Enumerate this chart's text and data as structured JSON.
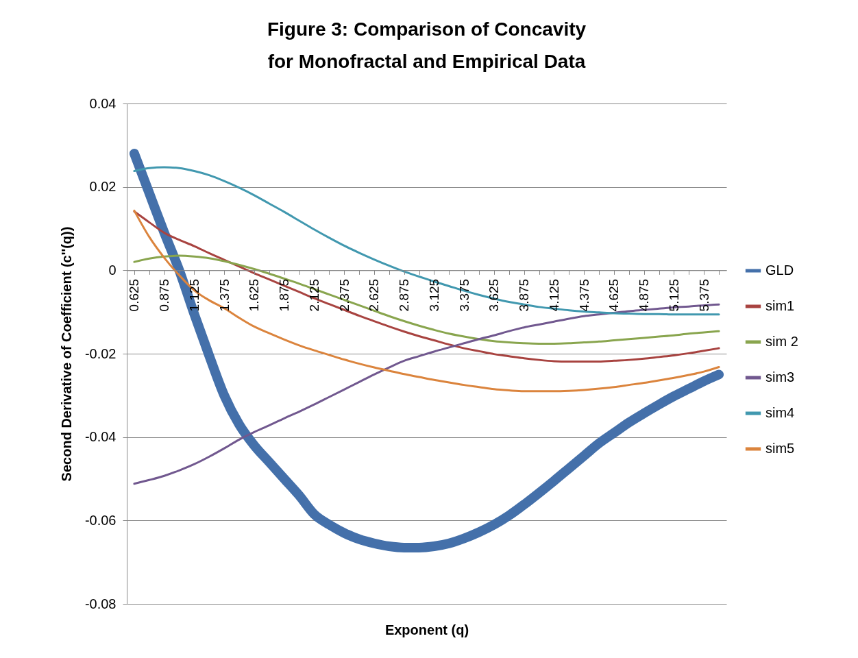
{
  "chart_data": {
    "type": "line",
    "title": "Figure 3: Comparison of Concavity\nfor Monofractal and Empirical Data",
    "xlabel": "Exponent (q)",
    "ylabel": "Second Derivative of Coefficient (c''(q))",
    "categories": [
      "0.625",
      null,
      "0.875",
      null,
      "1.125",
      null,
      "1.375",
      null,
      "1.625",
      null,
      "1.875",
      null,
      "2.125",
      null,
      "2.375",
      null,
      "2.625",
      null,
      "2.875",
      null,
      "3.125",
      null,
      "3.375",
      null,
      "3.625",
      null,
      "3.875",
      null,
      "4.125",
      null,
      "4.375",
      null,
      "4.625",
      null,
      "4.875",
      null,
      "5.125",
      null,
      "5.375",
      null
    ],
    "ylim": [
      -0.08,
      0.04
    ],
    "yticks": [
      -0.08,
      -0.06,
      -0.04,
      -0.02,
      0,
      0.02,
      0.04
    ],
    "grid": "y",
    "legend": "right",
    "series": [
      {
        "name": "GLD",
        "color": "#4470aa",
        "values": [
          0.028,
          0.0185,
          0.009,
          0.0,
          -0.0105,
          -0.0205,
          -0.03,
          -0.037,
          -0.042,
          -0.046,
          -0.05,
          -0.054,
          -0.0585,
          -0.061,
          -0.063,
          -0.0645,
          -0.0655,
          -0.0662,
          -0.0665,
          -0.0665,
          -0.0662,
          -0.0655,
          -0.0643,
          -0.0628,
          -0.061,
          -0.0588,
          -0.0562,
          -0.0534,
          -0.0505,
          -0.0475,
          -0.0445,
          -0.0415,
          -0.039,
          -0.0365,
          -0.0343,
          -0.0322,
          -0.0302,
          -0.0284,
          -0.0266,
          -0.025
        ]
      },
      {
        "name": "sim1",
        "color": "#a84340",
        "values": [
          0.0141,
          0.0115,
          0.009,
          0.0073,
          0.0058,
          0.0041,
          0.0025,
          0.0009,
          -0.0007,
          -0.0022,
          -0.0037,
          -0.0052,
          -0.0067,
          -0.0081,
          -0.0095,
          -0.0109,
          -0.0122,
          -0.0135,
          -0.0147,
          -0.0158,
          -0.0168,
          -0.0178,
          -0.0187,
          -0.0194,
          -0.0201,
          -0.0206,
          -0.0211,
          -0.0215,
          -0.0218,
          -0.0219,
          -0.0219,
          -0.0219,
          -0.0217,
          -0.0215,
          -0.0212,
          -0.0208,
          -0.0204,
          -0.0199,
          -0.0193,
          -0.0187
        ]
      },
      {
        "name": "sim 2",
        "color": "#89a54e",
        "values": [
          0.002,
          0.0028,
          0.0033,
          0.0035,
          0.0033,
          0.0029,
          0.0022,
          0.0013,
          0.0003,
          -0.0008,
          -0.002,
          -0.0032,
          -0.0045,
          -0.0058,
          -0.0071,
          -0.0084,
          -0.0097,
          -0.011,
          -0.0122,
          -0.0133,
          -0.0143,
          -0.0152,
          -0.0159,
          -0.0165,
          -0.017,
          -0.0173,
          -0.0175,
          -0.0176,
          -0.0176,
          -0.0175,
          -0.0173,
          -0.0171,
          -0.0168,
          -0.0165,
          -0.0162,
          -0.0159,
          -0.0156,
          -0.0152,
          -0.0149,
          -0.0146
        ]
      },
      {
        "name": "sim3",
        "color": "#71588f",
        "values": [
          -0.0512,
          -0.0503,
          -0.0493,
          -0.048,
          -0.0465,
          -0.0447,
          -0.0427,
          -0.0406,
          -0.0388,
          -0.0372,
          -0.0355,
          -0.0339,
          -0.0322,
          -0.0304,
          -0.0286,
          -0.0268,
          -0.025,
          -0.0233,
          -0.0217,
          -0.0206,
          -0.0195,
          -0.0185,
          -0.0175,
          -0.0165,
          -0.0156,
          -0.0146,
          -0.0137,
          -0.013,
          -0.0123,
          -0.0116,
          -0.011,
          -0.0106,
          -0.0102,
          -0.0098,
          -0.0095,
          -0.0092,
          -0.0089,
          -0.0087,
          -0.0084,
          -0.0082
        ]
      },
      {
        "name": "sim4",
        "color": "#4198af",
        "values": [
          0.0238,
          0.0245,
          0.0247,
          0.0245,
          0.0238,
          0.0228,
          0.0214,
          0.0198,
          0.018,
          0.016,
          0.014,
          0.0119,
          0.0098,
          0.0078,
          0.0059,
          0.0042,
          0.0026,
          0.0011,
          -0.0003,
          -0.0015,
          -0.0027,
          -0.0038,
          -0.0049,
          -0.0059,
          -0.0068,
          -0.0076,
          -0.0082,
          -0.0088,
          -0.0092,
          -0.0096,
          -0.0099,
          -0.0101,
          -0.0103,
          -0.0104,
          -0.0105,
          -0.0105,
          -0.0106,
          -0.0106,
          -0.0106,
          -0.0106
        ]
      },
      {
        "name": "sim5",
        "color": "#db843d",
        "values": [
          0.0143,
          0.008,
          0.003,
          -0.0012,
          -0.0048,
          -0.0072,
          -0.0091,
          -0.0114,
          -0.0135,
          -0.0151,
          -0.0166,
          -0.018,
          -0.0192,
          -0.0203,
          -0.0214,
          -0.0224,
          -0.0233,
          -0.0241,
          -0.0249,
          -0.0256,
          -0.0263,
          -0.0269,
          -0.0275,
          -0.028,
          -0.0285,
          -0.0288,
          -0.029,
          -0.029,
          -0.029,
          -0.0289,
          -0.0287,
          -0.0284,
          -0.028,
          -0.0275,
          -0.027,
          -0.0264,
          -0.0258,
          -0.0251,
          -0.0243,
          -0.0232
        ]
      }
    ]
  }
}
